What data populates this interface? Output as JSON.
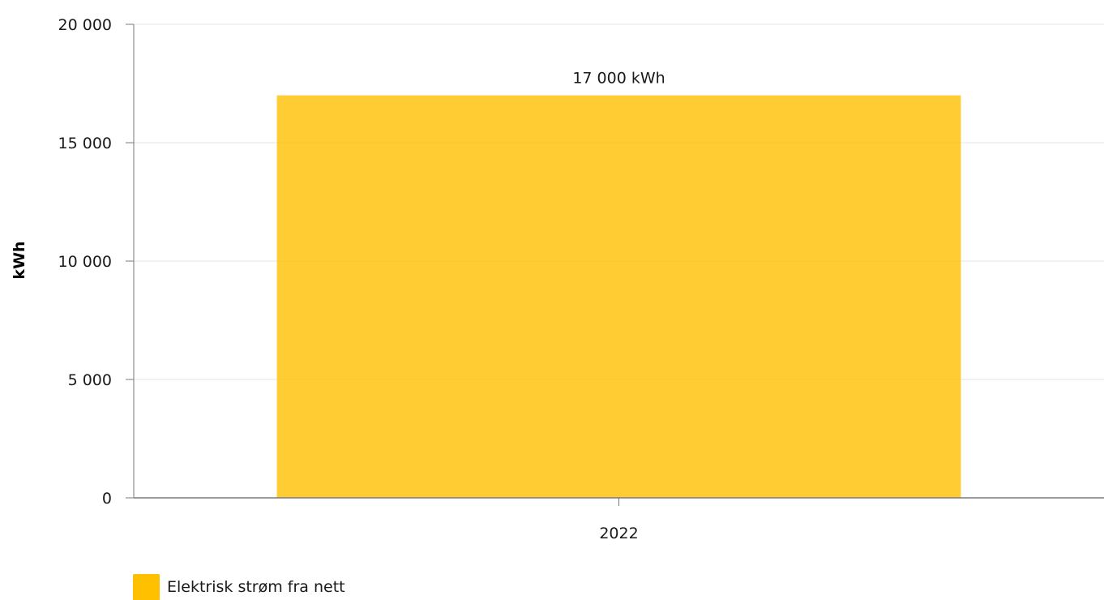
{
  "chart_data": {
    "type": "bar",
    "categories": [
      "2022"
    ],
    "series": [
      {
        "name": "Elektrisk strøm fra nett",
        "values": [
          17000
        ],
        "color": "#ffc000"
      }
    ],
    "data_labels": [
      "17 000 kWh"
    ],
    "title": "",
    "xlabel": "",
    "ylabel": "kWh",
    "ylim": [
      0,
      20000
    ],
    "yticks": [
      0,
      5000,
      10000,
      15000,
      20000
    ],
    "ytick_labels": [
      "0",
      "5 000",
      "10 000",
      "15 000",
      "20 000"
    ],
    "grid": true,
    "legend_position": "bottom-left"
  }
}
